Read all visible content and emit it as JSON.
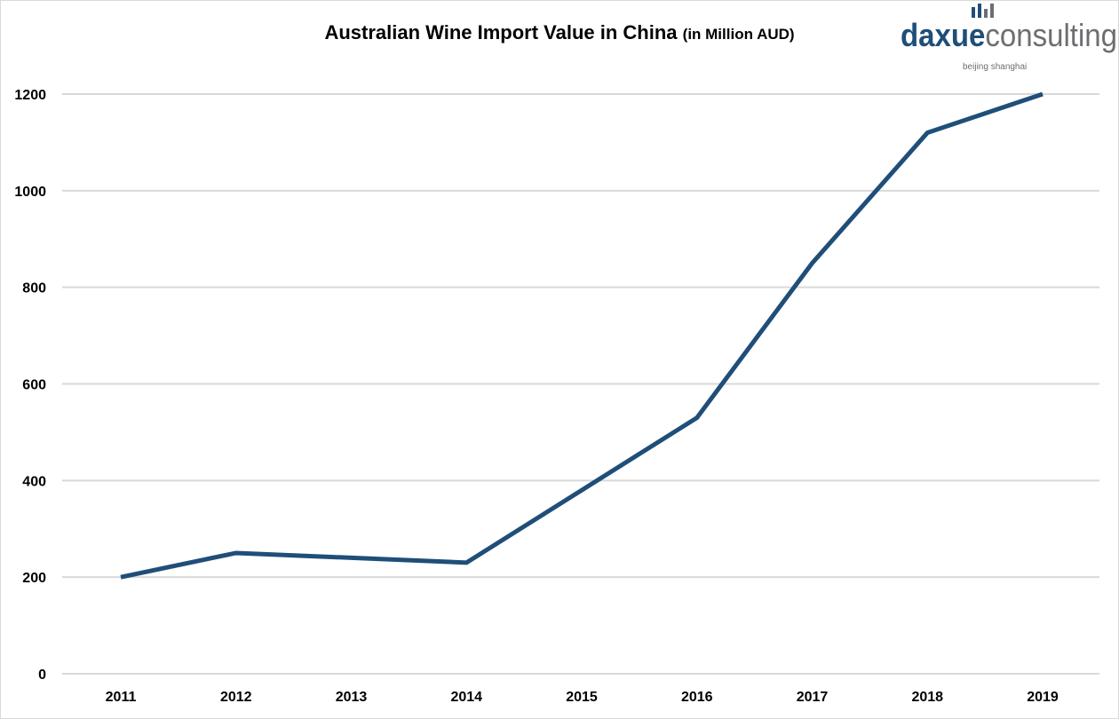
{
  "chart_data": {
    "type": "line",
    "title": "Australian Wine Import Value in China",
    "title_unit": "(in Million AUD)",
    "categories": [
      "2011",
      "2012",
      "2013",
      "2014",
      "2015",
      "2016",
      "2017",
      "2018",
      "2019"
    ],
    "series": [
      {
        "values": [
          200,
          250,
          240,
          230,
          380,
          530,
          850,
          1120,
          1200
        ],
        "color": "#1f4e79"
      }
    ],
    "yticks": [
      0,
      200,
      400,
      600,
      800,
      1000,
      1200
    ],
    "ylim": [
      0,
      1200
    ],
    "grid": true,
    "xlabel": "",
    "ylabel": ""
  },
  "logo": {
    "brand_left": "daxue",
    "brand_right": "consulting",
    "tagline": "beijing shanghai",
    "color_left": "#1f4e79",
    "color_right": "#6d6e71"
  }
}
